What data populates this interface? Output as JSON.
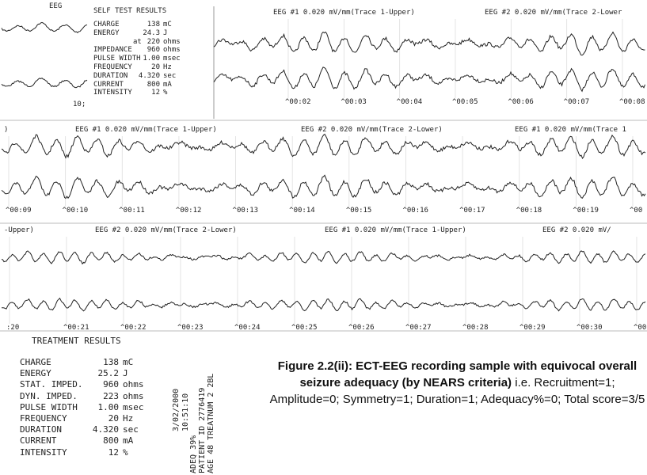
{
  "self_test": {
    "header": "EEG",
    "title": "SELF TEST RESULTS",
    "rows": [
      [
        "CHARGE",
        "138",
        "mC"
      ],
      [
        "ENERGY",
        "24.3",
        "J"
      ],
      [
        "at",
        "220",
        "ohms"
      ],
      [
        "IMPEDANCE",
        "960",
        "ohms"
      ],
      [
        "PULSE WIDTH",
        "1.00",
        "msec"
      ],
      [
        "FREQUENCY",
        "20",
        "Hz"
      ],
      [
        "DURATION",
        "4.320",
        "sec"
      ],
      [
        "CURRENT",
        "800",
        "mA"
      ],
      [
        "INTENSITY",
        "12",
        "%"
      ]
    ],
    "footer": "10;"
  },
  "strips": [
    {
      "headers": [
        "EEG #1 0.020 mV/mm(Trace 1-Upper)",
        "EEG #2 0.020 mV/mm(Trace 2-Lower"
      ],
      "times": [
        "^00:02",
        "^00:03",
        "^00:04",
        "^00:05",
        "^00:06",
        "^00:07",
        "^00:08"
      ]
    },
    {
      "headers": [
        ")",
        "EEG #1 0.020 mV/mm(Trace 1-Upper)",
        "EEG #2 0.020 mV/mm(Trace 2-Lower)",
        "EEG #1 0.020 mV/mm(Trace 1"
      ],
      "times": [
        "^00:09",
        "^00:10",
        "^00:11",
        "^00:12",
        "^00:13",
        "^00:14",
        "^00:15",
        "^00:16",
        "^00:17",
        "^00:18",
        "^00:19",
        "^00"
      ]
    },
    {
      "headers": [
        "-Upper)",
        "EEG #2 0.020 mV/mm(Trace 2-Lower)",
        "EEG #1 0.020 mV/mm(Trace 1-Upper)",
        "EEG #2 0.020 mV/"
      ],
      "times": [
        ":20",
        "^00:21",
        "^00:22",
        "^00:23",
        "^00:24",
        "^00:25",
        "^00:26",
        "^00:27",
        "^00:28",
        "^00:29",
        "^00:30",
        "^00;"
      ]
    }
  ],
  "treatment": {
    "title": "TREATMENT RESULTS",
    "rows": [
      [
        "CHARGE",
        "138",
        "mC"
      ],
      [
        "ENERGY",
        "25.2",
        "J"
      ],
      [
        "STAT. IMPED.",
        "960",
        "ohms"
      ],
      [
        "DYN. IMPED.",
        "223",
        "ohms"
      ],
      [
        "PULSE WIDTH",
        "1.00",
        "msec"
      ],
      [
        "FREQUENCY",
        "20",
        "Hz"
      ],
      [
        "DURATION",
        "4.320",
        "sec"
      ],
      [
        "CURRENT",
        "800",
        "mA"
      ],
      [
        "INTENSITY",
        "12",
        "%"
      ]
    ]
  },
  "stamp": [
    "3/02/2000",
    "10:51:10"
  ],
  "info": [
    "ADEQ 39%",
    "PATIENT ID 2776419",
    "AGE 48 TREATNUM 2 2BL"
  ],
  "caption": {
    "bold": "Figure 2.2(ii): ECT-EEG recording sample with equivocal overall seizure adequacy (by NEARS criteria)",
    "text": " i.e. Recruitment=1; Amplitude=0; Symmetry=1; Duration=1; Adequacy%=0; Total score=3/5"
  }
}
